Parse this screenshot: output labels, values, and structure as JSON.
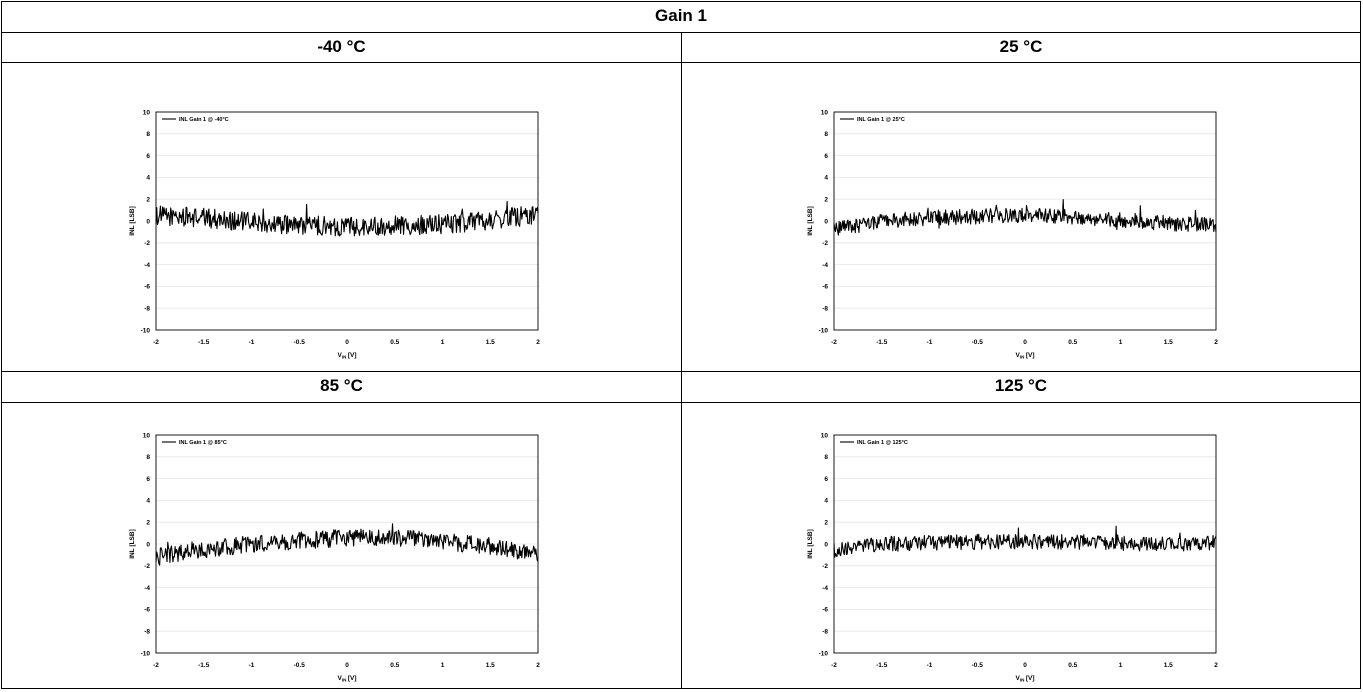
{
  "table": {
    "title": "Gain 1",
    "headers": [
      "-40 °C",
      "25 °C",
      "85 °C",
      "125 °C"
    ]
  },
  "colors": {
    "line": "#000000",
    "grid": "#e6e6e6",
    "border": "#000000"
  },
  "chart_data": [
    {
      "type": "line",
      "xlabel_main": "V",
      "xlabel_sub": "IN",
      "xlabel_unit": "[V]",
      "ylabel": "INL [LSB]",
      "xlim": [
        -2,
        2
      ],
      "ylim": [
        -10,
        10
      ],
      "xticks": [
        "-2",
        "-1.5",
        "-1",
        "-0.5",
        "0",
        "0.5",
        "1",
        "1.5",
        "2"
      ],
      "yticks": [
        "10",
        "8",
        "6",
        "4",
        "2",
        "0",
        "-2",
        "-4",
        "-6",
        "-8",
        "-10"
      ],
      "legend_position": "top-left",
      "series": [
        {
          "name": "INL Gain 1 @ -40°C",
          "x": [
            -2,
            -1.5,
            -1,
            -0.5,
            0,
            0.5,
            1,
            1.5,
            2
          ],
          "y": [
            0.5,
            0.3,
            -0.1,
            -0.4,
            -0.5,
            -0.4,
            -0.3,
            0.1,
            0.6
          ],
          "noise": 0.9
        }
      ]
    },
    {
      "type": "line",
      "xlabel_main": "V",
      "xlabel_sub": "IN",
      "xlabel_unit": "[V]",
      "ylabel": "INL [LSB]",
      "xlim": [
        -2,
        2
      ],
      "ylim": [
        -10,
        10
      ],
      "xticks": [
        "-2",
        "-1.5",
        "-1",
        "-0.5",
        "0",
        "0.5",
        "1",
        "1.5",
        "2"
      ],
      "yticks": [
        "10",
        "8",
        "6",
        "4",
        "2",
        "0",
        "-2",
        "-4",
        "-6",
        "-8",
        "-10"
      ],
      "legend_position": "top-left",
      "series": [
        {
          "name": "INL Gain 1 @ 25°C",
          "x": [
            -2,
            -1.5,
            -1,
            -0.5,
            0,
            0.5,
            1,
            1.5,
            2
          ],
          "y": [
            -0.8,
            0.0,
            0.3,
            0.4,
            0.5,
            0.4,
            0.1,
            -0.2,
            -0.4
          ],
          "noise": 0.7
        }
      ]
    },
    {
      "type": "line",
      "xlabel_main": "V",
      "xlabel_sub": "IN",
      "xlabel_unit": "[V]",
      "ylabel": "INL [LSB]",
      "xlim": [
        -2,
        2
      ],
      "ylim": [
        -10,
        10
      ],
      "xticks": [
        "-2",
        "-1.5",
        "-1",
        "-0.5",
        "0",
        "0.5",
        "1",
        "1.5",
        "2"
      ],
      "yticks": [
        "10",
        "8",
        "6",
        "4",
        "2",
        "0",
        "-2",
        "-4",
        "-6",
        "-8",
        "-10"
      ],
      "legend_position": "top-left",
      "series": [
        {
          "name": "INL Gain 1 @ 85°C",
          "x": [
            -2,
            -1.5,
            -1,
            -0.5,
            0,
            0.5,
            1,
            1.5,
            2
          ],
          "y": [
            -1.2,
            -0.5,
            0.0,
            0.3,
            0.6,
            0.6,
            0.2,
            -0.2,
            -0.9
          ],
          "noise": 0.8
        }
      ]
    },
    {
      "type": "line",
      "xlabel_main": "V",
      "xlabel_sub": "IN",
      "xlabel_unit": "[V]",
      "ylabel": "INL [LSB]",
      "xlim": [
        -2,
        2
      ],
      "ylim": [
        -10,
        10
      ],
      "xticks": [
        "-2",
        "-1.5",
        "-1",
        "-0.5",
        "0",
        "0.5",
        "1",
        "1.5",
        "2"
      ],
      "yticks": [
        "10",
        "8",
        "6",
        "4",
        "2",
        "0",
        "-2",
        "-4",
        "-6",
        "-8",
        "-10"
      ],
      "legend_position": "top-left",
      "series": [
        {
          "name": "INL Gain 1 @ 125°C",
          "x": [
            -2,
            -1.5,
            -1,
            -0.5,
            0,
            0.5,
            1,
            1.5,
            2
          ],
          "y": [
            -0.6,
            0.0,
            0.1,
            0.2,
            0.2,
            0.2,
            0.1,
            0.0,
            0.1
          ],
          "noise": 0.7
        }
      ]
    }
  ]
}
